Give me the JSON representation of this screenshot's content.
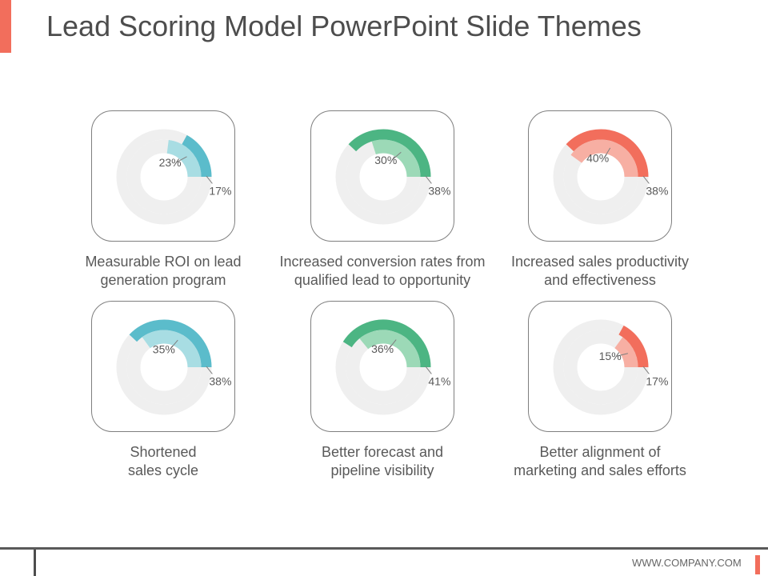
{
  "slide": {
    "title": "Lead Scoring Model PowerPoint Slide Themes",
    "footer": "WWW.COMPANY.COM",
    "accent_color": "#F26E5C"
  },
  "chart_data": [
    {
      "type": "radial-bar",
      "caption_line1": "Measurable ROI on lead",
      "caption_line2": "generation program",
      "inner": {
        "value": 23,
        "label": "23%"
      },
      "outer": {
        "value": 17,
        "label": "17%"
      },
      "inner_color": "#A8DDE3",
      "outer_color": "#5BBCCB",
      "track_color": "#EFEFEF"
    },
    {
      "type": "radial-bar",
      "caption_line1": "Increased conversion rates from",
      "caption_line2": "qualified lead to opportunity",
      "inner": {
        "value": 30,
        "label": "30%"
      },
      "outer": {
        "value": 38,
        "label": "38%"
      },
      "inner_color": "#9CD9B7",
      "outer_color": "#4CB583",
      "track_color": "#EFEFEF"
    },
    {
      "type": "radial-bar",
      "caption_line1": "Increased sales productivity",
      "caption_line2": "and effectiveness",
      "inner": {
        "value": 40,
        "label": "40%"
      },
      "outer": {
        "value": 38,
        "label": "38%"
      },
      "inner_color": "#F7AFA3",
      "outer_color": "#F26E5C",
      "track_color": "#EFEFEF"
    },
    {
      "type": "radial-bar",
      "caption_line1": "Shortened",
      "caption_line2": "sales cycle",
      "inner": {
        "value": 35,
        "label": "35%"
      },
      "outer": {
        "value": 38,
        "label": "38%"
      },
      "inner_color": "#A8DDE3",
      "outer_color": "#5BBCCB",
      "track_color": "#EFEFEF"
    },
    {
      "type": "radial-bar",
      "caption_line1": "Better forecast and",
      "caption_line2": "pipeline visibility",
      "inner": {
        "value": 36,
        "label": "36%"
      },
      "outer": {
        "value": 41,
        "label": "41%"
      },
      "inner_color": "#9CD9B7",
      "outer_color": "#4CB583",
      "track_color": "#EFEFEF"
    },
    {
      "type": "radial-bar",
      "caption_line1": "Better alignment of",
      "caption_line2": "marketing and sales efforts",
      "inner": {
        "value": 15,
        "label": "15%"
      },
      "outer": {
        "value": 17,
        "label": "17%"
      },
      "inner_color": "#F7AFA3",
      "outer_color": "#F26E5C",
      "track_color": "#EFEFEF"
    }
  ]
}
